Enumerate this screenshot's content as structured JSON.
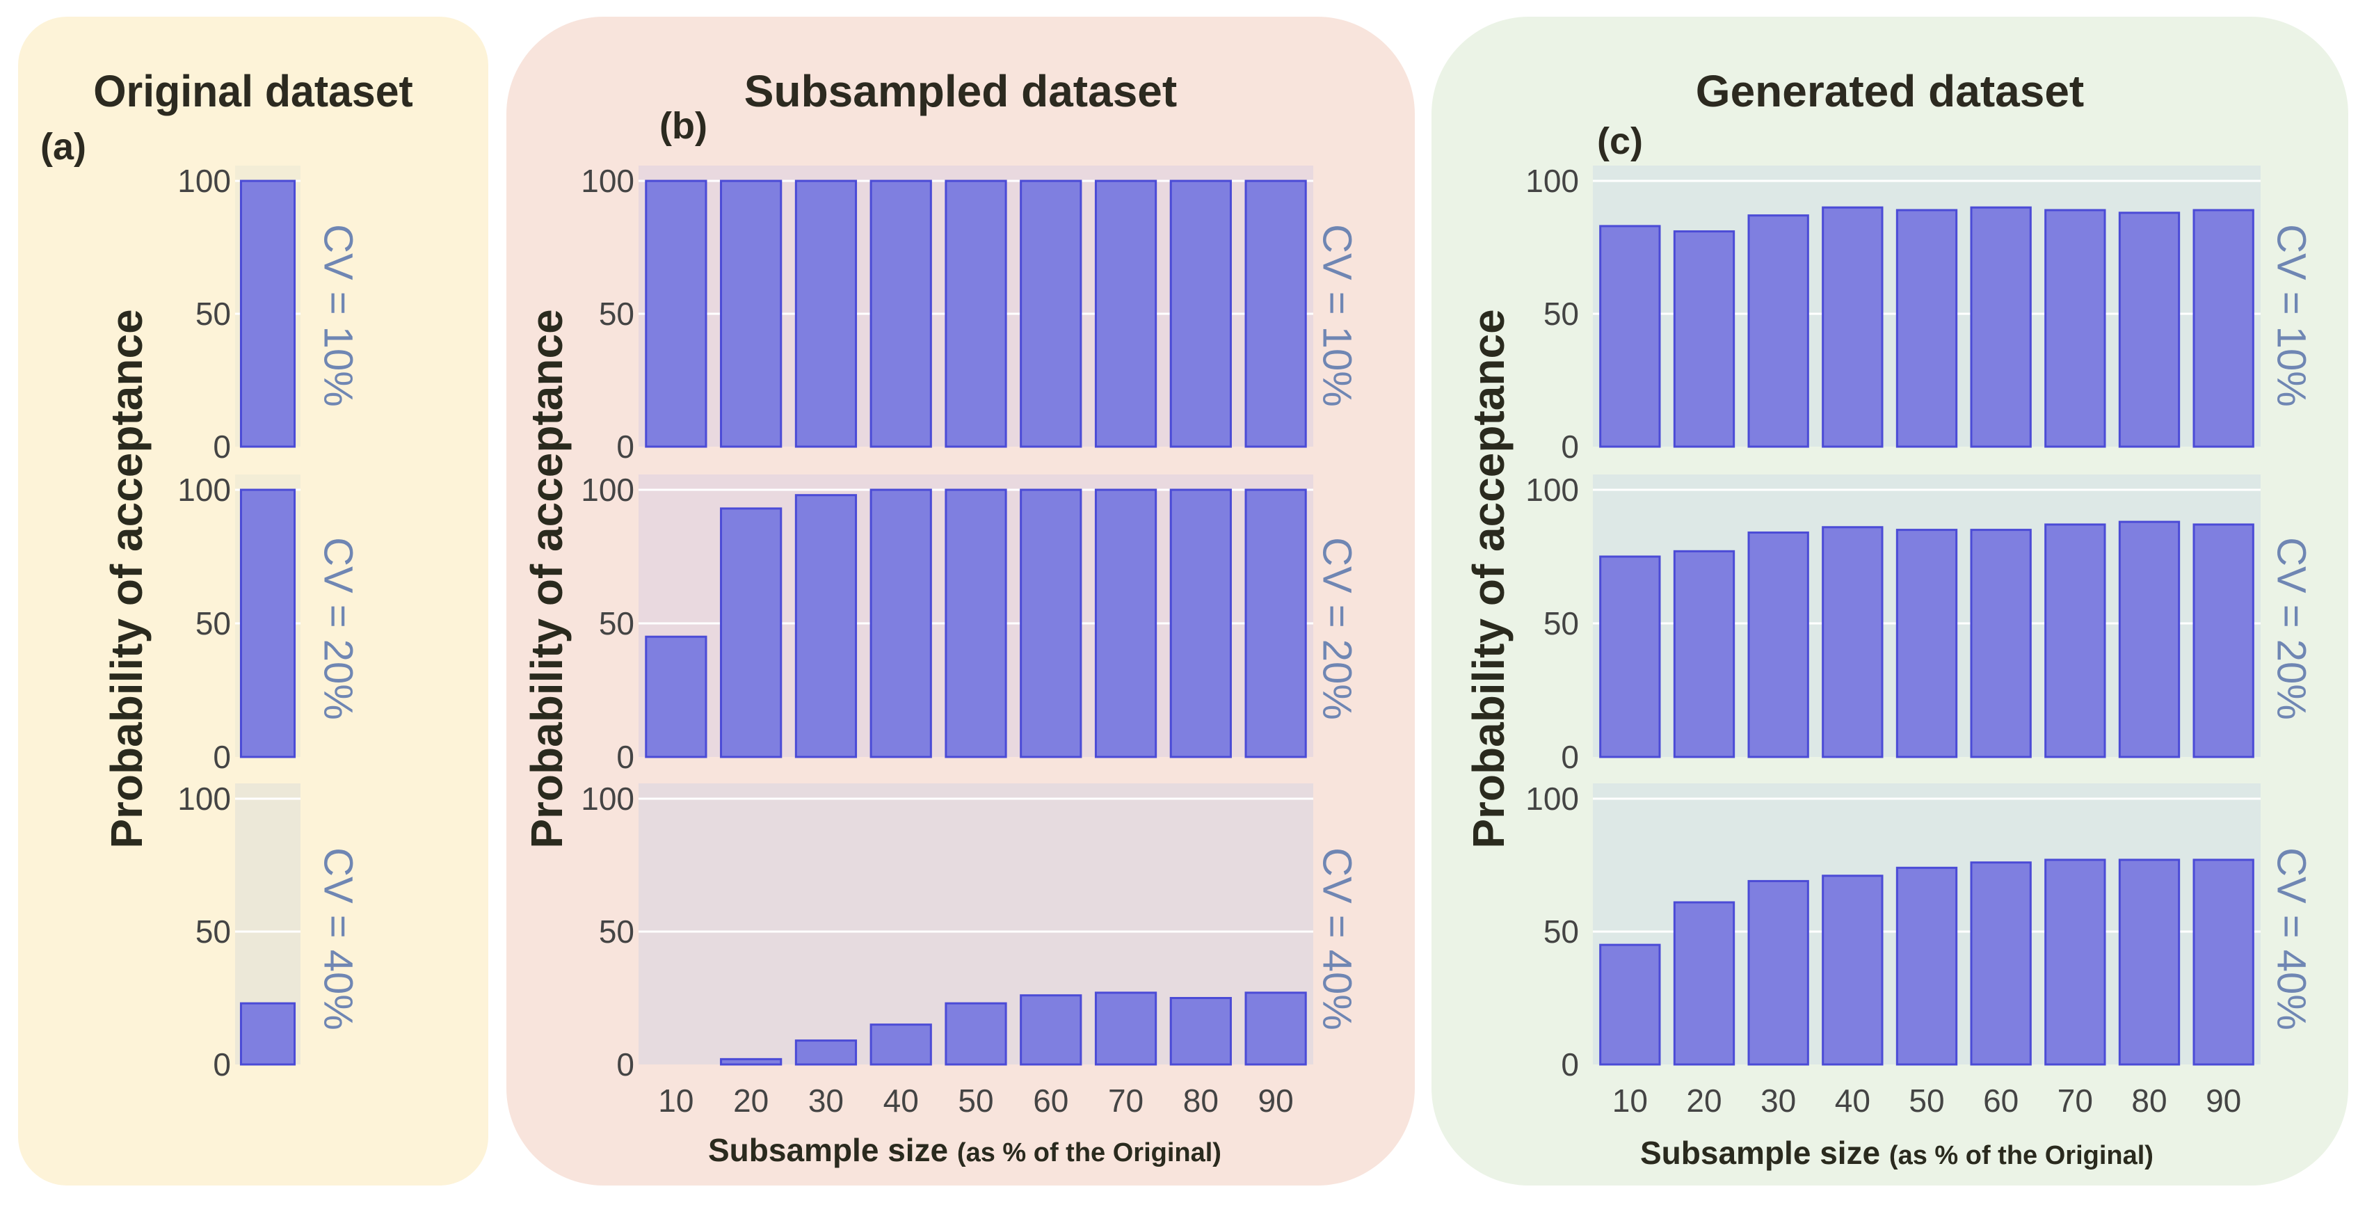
{
  "panels": {
    "a": {
      "title": "Original dataset",
      "label": "(a)"
    },
    "b": {
      "title": "Subsampled dataset",
      "label": "(b)"
    },
    "c": {
      "title": "Generated dataset",
      "label": "(c)"
    }
  },
  "ylabel": "Probability of acceptance",
  "xlabel_main": "Subsample size",
  "xlabel_note": "(as % of the Original)",
  "cv_labels": [
    "CV = 10%",
    "CV = 20%",
    "CV = 40%"
  ],
  "colors": {
    "bar": "#7f7fe0",
    "bar_edge": "#4b4bd6",
    "cv_text": "#6f86b3",
    "tick_text": "#444444"
  },
  "chart_data": [
    {
      "id": "a",
      "type": "bar",
      "title": "Original dataset",
      "categories": [
        ""
      ],
      "ylabel": "Probability of acceptance",
      "ylim": [
        0,
        100
      ],
      "yticks": [
        0,
        50,
        100
      ],
      "series": [
        {
          "name": "CV = 10%",
          "values": [
            100
          ]
        },
        {
          "name": "CV = 20%",
          "values": [
            100
          ]
        },
        {
          "name": "CV = 40%",
          "values": [
            23
          ]
        }
      ]
    },
    {
      "id": "b",
      "type": "bar",
      "title": "Subsampled dataset",
      "categories": [
        "10",
        "20",
        "30",
        "40",
        "50",
        "60",
        "70",
        "80",
        "90"
      ],
      "xlabel": "Subsample size (as % of the Original)",
      "ylabel": "Probability of acceptance",
      "ylim": [
        0,
        100
      ],
      "yticks": [
        0,
        50,
        100
      ],
      "series": [
        {
          "name": "CV = 10%",
          "values": [
            100,
            100,
            100,
            100,
            100,
            100,
            100,
            100,
            100
          ]
        },
        {
          "name": "CV = 20%",
          "values": [
            45,
            93,
            98,
            100,
            100,
            100,
            100,
            100,
            100
          ]
        },
        {
          "name": "CV = 40%",
          "values": [
            0,
            2,
            9,
            15,
            23,
            26,
            27,
            25,
            27
          ]
        }
      ]
    },
    {
      "id": "c",
      "type": "bar",
      "title": "Generated dataset",
      "categories": [
        "10",
        "20",
        "30",
        "40",
        "50",
        "60",
        "70",
        "80",
        "90"
      ],
      "xlabel": "Subsample size (as % of the Original)",
      "ylabel": "Probability of acceptance",
      "ylim": [
        0,
        100
      ],
      "yticks": [
        0,
        50,
        100
      ],
      "series": [
        {
          "name": "CV = 10%",
          "values": [
            83,
            81,
            87,
            90,
            89,
            90,
            89,
            88,
            89
          ]
        },
        {
          "name": "CV = 20%",
          "values": [
            75,
            77,
            84,
            86,
            85,
            85,
            87,
            88,
            87
          ]
        },
        {
          "name": "CV = 40%",
          "values": [
            45,
            61,
            69,
            71,
            74,
            76,
            77,
            77,
            77
          ]
        }
      ]
    }
  ]
}
